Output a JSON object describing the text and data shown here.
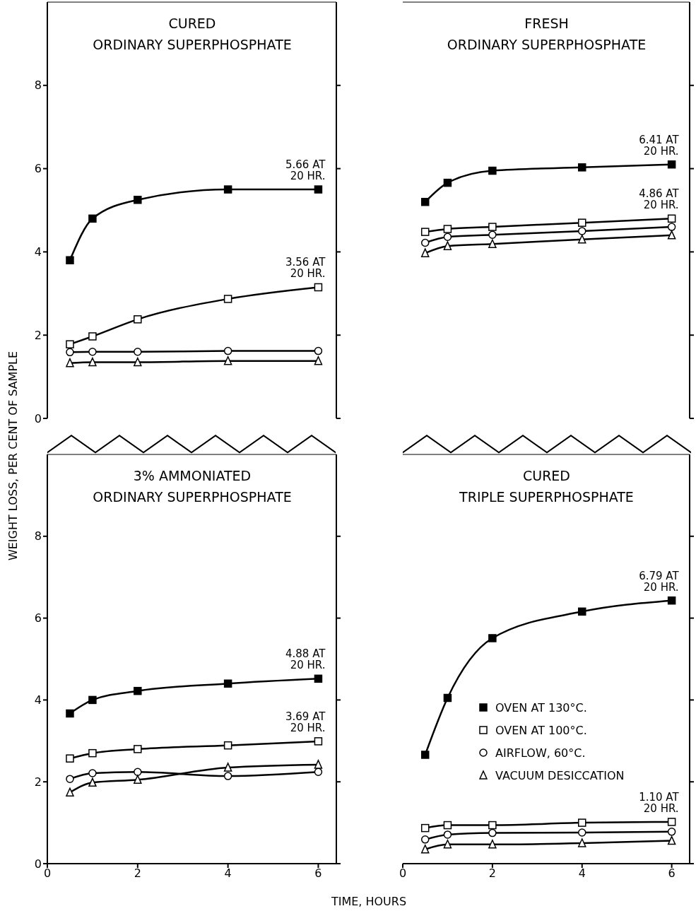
{
  "chart_data": [
    {
      "type": "line",
      "title": "CURED\nORDINARY SUPERPHOSPHATE",
      "ylabel": "WEIGHT LOSS, PER CENT OF SAMPLE",
      "x": [
        0.5,
        1,
        2,
        4,
        6
      ],
      "xlim": [
        0,
        6.4
      ],
      "xticks": [
        0,
        2,
        4,
        6
      ],
      "ylim": [
        0,
        10
      ],
      "yticks": [
        0,
        2,
        4,
        6,
        8
      ],
      "tick_labels": "y",
      "grid": false,
      "legend": false,
      "line_style": "solid",
      "series": [
        {
          "color": "#000000",
          "marker": "square",
          "values": [
            3.8,
            4.8,
            5.25,
            5.5,
            5.5
          ]
        },
        {
          "color": "#000000",
          "marker": "square",
          "values": [
            1.78,
            1.97,
            2.38,
            2.87,
            3.15
          ]
        },
        {
          "color": "#000000",
          "marker": "circle",
          "values": [
            1.59,
            1.6,
            1.6,
            1.62,
            1.62
          ]
        },
        {
          "color": "#000000",
          "marker": "triangle",
          "values": [
            1.33,
            1.35,
            1.35,
            1.38,
            1.38
          ]
        }
      ],
      "annotations": [
        "5.66 AT\n20 HR.",
        "3.56 AT\n20 HR."
      ]
    },
    {
      "type": "line",
      "title": "FRESH\nORDINARY SUPERPHOSPHATE",
      "x": [
        0.5,
        1,
        2,
        4,
        6
      ],
      "xlim": [
        0,
        6.4
      ],
      "xticks": [
        0,
        2,
        4,
        6
      ],
      "ylim": [
        0,
        10
      ],
      "yticks": [
        0,
        2,
        4,
        6,
        8
      ],
      "tick_labels": false,
      "grid": false,
      "legend": false,
      "line_style": "solid",
      "series": [
        {
          "color": "#000000",
          "marker": "square",
          "values": [
            5.2,
            5.66,
            5.95,
            6.03,
            6.1
          ]
        },
        {
          "color": "#000000",
          "marker": "square",
          "values": [
            4.48,
            4.55,
            4.6,
            4.7,
            4.8
          ]
        },
        {
          "color": "#000000",
          "marker": "circle",
          "values": [
            4.22,
            4.36,
            4.41,
            4.5,
            4.6
          ]
        },
        {
          "color": "#000000",
          "marker": "triangle",
          "values": [
            3.97,
            4.14,
            4.19,
            4.3,
            4.4
          ]
        }
      ],
      "annotations": [
        "6.41 AT\n20 HR.",
        "4.86 AT\n20 HR."
      ]
    },
    {
      "type": "line",
      "title": "3% AMMONIATED\nORDINARY SUPERPHOSPHATE",
      "xlabel": "TIME, HOURS",
      "x": [
        0.5,
        1,
        2,
        4,
        6
      ],
      "xlim": [
        0,
        6.4
      ],
      "xticks": [
        0,
        2,
        4,
        6
      ],
      "ylim": [
        0,
        10
      ],
      "yticks": [
        0,
        2,
        4,
        6,
        8
      ],
      "grid": false,
      "legend": false,
      "line_style": "solid",
      "series": [
        {
          "color": "#000000",
          "marker": "square",
          "values": [
            3.67,
            4.0,
            4.22,
            4.4,
            4.52
          ]
        },
        {
          "color": "#000000",
          "marker": "square",
          "values": [
            2.57,
            2.7,
            2.8,
            2.89,
            2.99
          ]
        },
        {
          "color": "#000000",
          "marker": "circle",
          "values": [
            2.07,
            2.21,
            2.24,
            2.14,
            2.24
          ]
        },
        {
          "color": "#000000",
          "marker": "triangle",
          "values": [
            1.74,
            1.98,
            2.05,
            2.35,
            2.42
          ]
        }
      ],
      "annotations": [
        "4.88 AT\n20 HR.",
        "3.69 AT\n20 HR."
      ]
    },
    {
      "type": "line",
      "title": "CURED\nTRIPLE SUPERPHOSPHATE",
      "x": [
        0.5,
        1,
        2,
        4,
        6
      ],
      "xlim": [
        0,
        6.4
      ],
      "xticks": [
        0,
        2,
        4,
        6
      ],
      "ylim": [
        0,
        10
      ],
      "yticks": [
        0,
        2,
        4,
        6,
        8
      ],
      "tick_labels": "x",
      "grid": false,
      "legend": "center",
      "line_style": "solid",
      "series": [
        {
          "name": "OVEN AT 130°C.",
          "color": "#000000",
          "marker": "square",
          "values": [
            2.66,
            4.05,
            5.51,
            6.16,
            6.43
          ]
        },
        {
          "name": "OVEN AT 100°C.",
          "color": "#000000",
          "marker": "square",
          "values": [
            0.87,
            0.94,
            0.94,
            1.0,
            1.02
          ]
        },
        {
          "name": "AIRFLOW, 60°C.",
          "color": "#000000",
          "marker": "circle",
          "values": [
            0.59,
            0.71,
            0.75,
            0.76,
            0.78
          ]
        },
        {
          "name": "VACUUM DESICCATION",
          "color": "#000000",
          "marker": "triangle",
          "values": [
            0.35,
            0.47,
            0.47,
            0.5,
            0.56
          ]
        }
      ],
      "annotations": [
        "6.79 AT\n20 HR.",
        "1.10 AT\n20 HR."
      ]
    }
  ]
}
